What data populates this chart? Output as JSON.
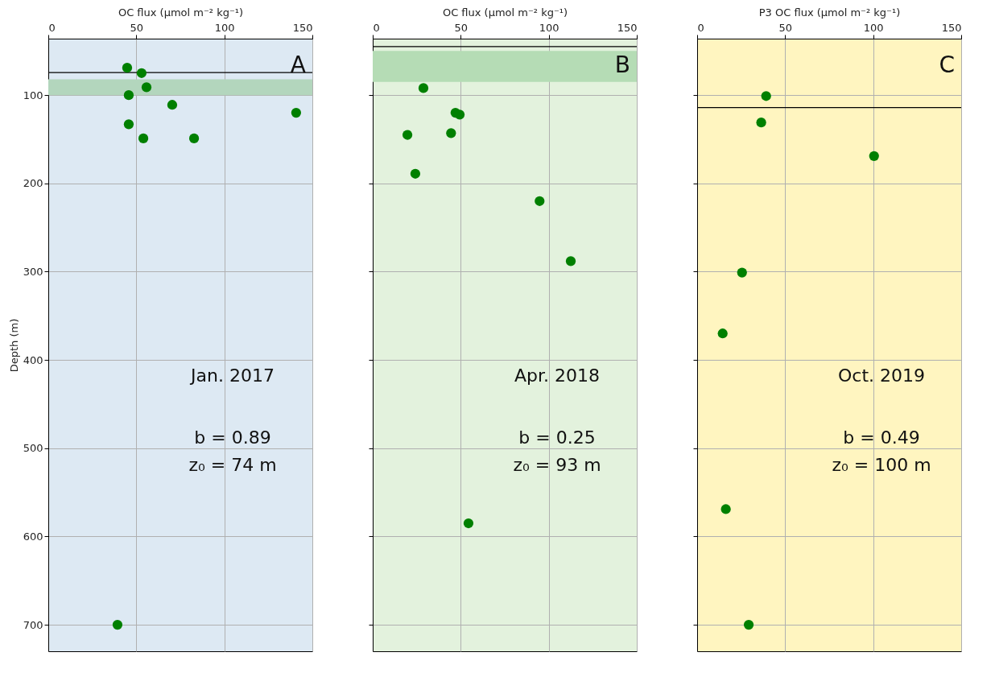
{
  "chart_data": [
    {
      "type": "scatter",
      "xlabel": "OC flux (μmol m⁻² kg⁻¹)",
      "ylabel": "Depth (m)",
      "x": [
        44.8,
        53,
        55.8,
        45.7,
        70.4,
        140.8,
        45.7,
        54,
        82.8,
        39.3
      ],
      "values": [
        69,
        75,
        91,
        100,
        111,
        120,
        133,
        149,
        149,
        700
      ],
      "color": "#008000",
      "marker": "circle",
      "xlim": [
        0,
        150
      ],
      "xticks": [
        0,
        50,
        100,
        150
      ],
      "ylim": [
        730,
        36
      ],
      "yticks": [
        100,
        200,
        300,
        400,
        500,
        600,
        700
      ],
      "grid": true,
      "annotations": [
        "A",
        "Jan. 2017",
        "b = 0.89",
        "z₀ = 74 m"
      ],
      "ref_lines": [
        {
          "axis": "y",
          "value": 74.5,
          "color": "#000000"
        }
      ],
      "bands": [
        {
          "axis": "y",
          "from": 82,
          "to": 100,
          "color": "#b3d6bd"
        }
      ]
    },
    {
      "type": "scatter",
      "xlabel": "OC flux (μmol m⁻² kg⁻¹)",
      "x": [
        28.8,
        47,
        49.4,
        19.7,
        44.5,
        24.2,
        94.8,
        112.5,
        54.4
      ],
      "values": [
        92,
        120,
        122,
        145,
        143,
        189,
        220,
        288,
        585
      ],
      "color": "#008000",
      "marker": "circle",
      "xlim": [
        0,
        150
      ],
      "xticks": [
        0,
        50,
        100,
        150
      ],
      "ylim": [
        730,
        36
      ],
      "yticks": [
        100,
        200,
        300,
        400,
        500,
        600,
        700
      ],
      "grid": true,
      "tick_labels": "x",
      "annotations": [
        "B",
        "Apr. 2018",
        "b = 0.25",
        "z₀ = 93 m"
      ],
      "ref_lines": [
        {
          "axis": "y",
          "value": 45,
          "color": "#000000"
        }
      ],
      "bands": [
        {
          "axis": "y",
          "from": 50,
          "to": 85,
          "color": "#b5dcb5"
        }
      ]
    },
    {
      "type": "scatter",
      "xlabel": "P3 OC flux (μmol m⁻² kg⁻¹)",
      "x": [
        39.2,
        36.4,
        100.5,
        25.5,
        14.5,
        16.3,
        29.3
      ],
      "values": [
        101,
        131,
        169,
        301,
        370,
        569,
        700
      ],
      "color": "#008000",
      "marker": "circle",
      "xlim": [
        0,
        150
      ],
      "xticks": [
        0,
        50,
        100,
        150
      ],
      "ylim": [
        730,
        36
      ],
      "yticks": [
        100,
        200,
        300,
        400,
        500,
        600,
        700
      ],
      "grid": true,
      "tick_labels": "x",
      "annotations": [
        "C",
        "Oct. 2019",
        "b = 0.49",
        "z₀ = 100 m"
      ],
      "ref_lines": [
        {
          "axis": "y",
          "value": 114,
          "color": "#000000"
        }
      ]
    }
  ]
}
